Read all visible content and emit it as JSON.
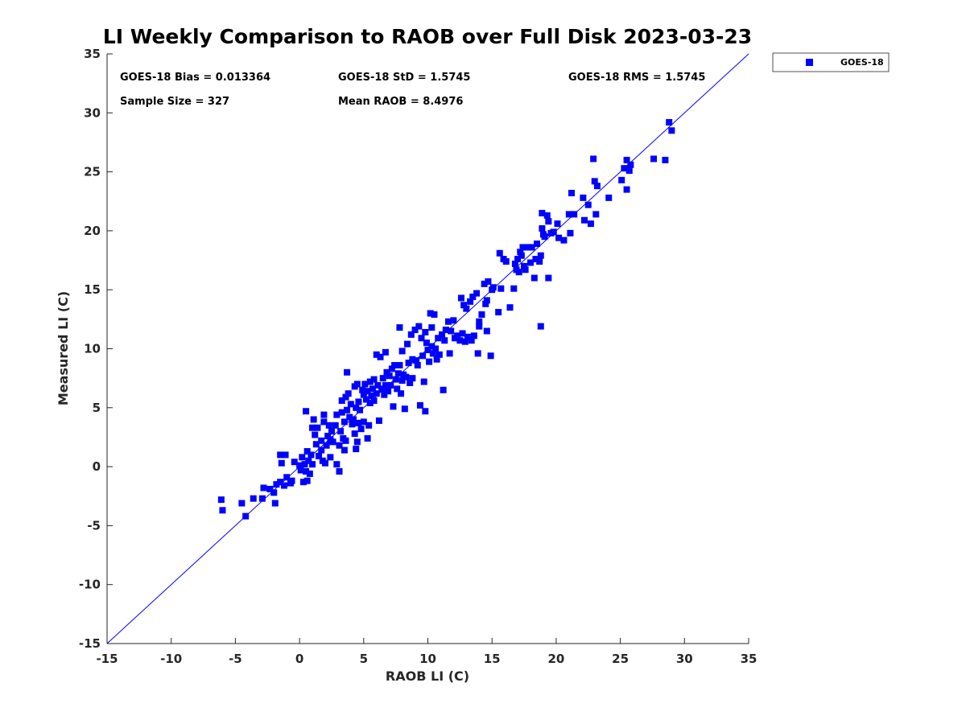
{
  "chart_data": {
    "type": "scatter",
    "title": "LI Weekly Comparison to RAOB over Full Disk 2023-03-23",
    "xlabel": "RAOB LI (C)",
    "ylabel": "Measured LI (C)",
    "xlim": [
      -15,
      35
    ],
    "ylim": [
      -15,
      35
    ],
    "xticks": [
      -15,
      -10,
      -5,
      0,
      5,
      10,
      15,
      20,
      25,
      30,
      35
    ],
    "yticks": [
      -15,
      -10,
      -5,
      0,
      5,
      10,
      15,
      20,
      25,
      30,
      35
    ],
    "grid": false,
    "legend_position": "outside-top-right",
    "reference_line": {
      "type": "identity",
      "color": "#0000ff"
    },
    "stats": {
      "bias": "GOES-18 Bias = 0.013364",
      "std": "GOES-18 StD = 1.5745",
      "rms": "GOES-18 RMS = 1.5745",
      "sample_size": "Sample Size = 327",
      "mean_raob": "Mean RAOB = 8.4976"
    },
    "series": [
      {
        "name": "GOES-18",
        "color": "#0000ff",
        "marker": "square",
        "points": [
          [
            -6.1,
            -2.8
          ],
          [
            -6.0,
            -3.7
          ],
          [
            -4.5,
            -3.1
          ],
          [
            -4.2,
            -4.2
          ],
          [
            -3.6,
            -2.7
          ],
          [
            -2.9,
            -2.7
          ],
          [
            -2.8,
            -1.8
          ],
          [
            -2.3,
            -1.9
          ],
          [
            -2.0,
            -2.2
          ],
          [
            -1.9,
            -3.1
          ],
          [
            -1.8,
            -1.5
          ],
          [
            -1.5,
            -1.3
          ],
          [
            -1.4,
            0.3
          ],
          [
            -1.5,
            1.0
          ],
          [
            -1.2,
            -1.6
          ],
          [
            -1.1,
            1.0
          ],
          [
            -1.0,
            -0.9
          ],
          [
            -0.7,
            -1.4
          ],
          [
            -0.6,
            -1.2
          ],
          [
            -0.4,
            0.4
          ],
          [
            0.0,
            0.1
          ],
          [
            0.1,
            -0.3
          ],
          [
            0.2,
            0.8
          ],
          [
            0.3,
            -1.3
          ],
          [
            0.4,
            0.2
          ],
          [
            0.5,
            -0.4
          ],
          [
            0.5,
            4.7
          ],
          [
            0.6,
            -1.2
          ],
          [
            0.6,
            1.3
          ],
          [
            0.7,
            0.5
          ],
          [
            0.8,
            -0.6
          ],
          [
            0.9,
            1.0
          ],
          [
            1.0,
            3.3
          ],
          [
            1.0,
            0.2
          ],
          [
            1.1,
            4.0
          ],
          [
            1.2,
            2.7
          ],
          [
            1.3,
            1.9
          ],
          [
            1.4,
            3.3
          ],
          [
            1.5,
            0.9
          ],
          [
            1.7,
            1.4
          ],
          [
            1.7,
            2.2
          ],
          [
            1.8,
            0.5
          ],
          [
            1.9,
            3.8
          ],
          [
            1.9,
            4.4
          ],
          [
            2.0,
            0.3
          ],
          [
            2.1,
            1.8
          ],
          [
            2.2,
            2.6
          ],
          [
            2.3,
            3.5
          ],
          [
            2.4,
            0.8
          ],
          [
            2.4,
            2.3
          ],
          [
            2.5,
            3.0
          ],
          [
            2.6,
            2.1
          ],
          [
            2.8,
            3.5
          ],
          [
            2.9,
            4.4
          ],
          [
            2.9,
            0.2
          ],
          [
            3.1,
            1.8
          ],
          [
            3.1,
            -0.4
          ],
          [
            3.2,
            3.0
          ],
          [
            3.3,
            5.6
          ],
          [
            3.3,
            4.6
          ],
          [
            3.4,
            2.4
          ],
          [
            3.5,
            3.8
          ],
          [
            3.5,
            1.4
          ],
          [
            3.6,
            5.9
          ],
          [
            3.6,
            2.2
          ],
          [
            3.7,
            8.0
          ],
          [
            3.7,
            4.8
          ],
          [
            3.8,
            6.2
          ],
          [
            3.9,
            4.2
          ],
          [
            4.0,
            5.3
          ],
          [
            4.1,
            3.6
          ],
          [
            4.2,
            4.0
          ],
          [
            4.3,
            2.8
          ],
          [
            4.3,
            6.8
          ],
          [
            4.4,
            5.0
          ],
          [
            4.4,
            1.5
          ],
          [
            4.5,
            2.1
          ],
          [
            4.5,
            7.0
          ],
          [
            4.6,
            5.5
          ],
          [
            4.6,
            3.7
          ],
          [
            4.7,
            4.8
          ],
          [
            4.8,
            3.2
          ],
          [
            4.9,
            6.5
          ],
          [
            5.0,
            6.1
          ],
          [
            5.0,
            3.8
          ],
          [
            5.1,
            7.0
          ],
          [
            5.2,
            5.7
          ],
          [
            5.3,
            6.4
          ],
          [
            5.3,
            2.4
          ],
          [
            5.4,
            3.5
          ],
          [
            5.5,
            7.2
          ],
          [
            5.5,
            5.4
          ],
          [
            5.6,
            6.0
          ],
          [
            5.7,
            6.6
          ],
          [
            5.8,
            5.6
          ],
          [
            5.8,
            7.4
          ],
          [
            6.0,
            6.2
          ],
          [
            6.0,
            9.5
          ],
          [
            6.1,
            6.9
          ],
          [
            6.2,
            3.9
          ],
          [
            6.3,
            9.3
          ],
          [
            6.4,
            6.6
          ],
          [
            6.5,
            7.5
          ],
          [
            6.6,
            6.1
          ],
          [
            6.7,
            9.7
          ],
          [
            6.7,
            6.9
          ],
          [
            6.8,
            8.0
          ],
          [
            6.9,
            6.4
          ],
          [
            7.0,
            7.7
          ],
          [
            7.1,
            6.9
          ],
          [
            7.2,
            8.3
          ],
          [
            7.3,
            5.1
          ],
          [
            7.4,
            8.6
          ],
          [
            7.5,
            7.4
          ],
          [
            7.6,
            6.6
          ],
          [
            7.7,
            7.9
          ],
          [
            7.8,
            8.6
          ],
          [
            7.8,
            11.8
          ],
          [
            7.9,
            6.2
          ],
          [
            8.0,
            7.3
          ],
          [
            8.0,
            9.8
          ],
          [
            8.1,
            7.8
          ],
          [
            8.2,
            4.9
          ],
          [
            8.3,
            7.6
          ],
          [
            8.4,
            10.4
          ],
          [
            8.5,
            8.8
          ],
          [
            8.6,
            7.1
          ],
          [
            8.7,
            11.2
          ],
          [
            8.8,
            9.1
          ],
          [
            8.8,
            7.5
          ],
          [
            9.0,
            11.6
          ],
          [
            9.1,
            9.0
          ],
          [
            9.2,
            8.6
          ],
          [
            9.3,
            11.9
          ],
          [
            9.4,
            5.2
          ],
          [
            9.5,
            10.9
          ],
          [
            9.6,
            9.4
          ],
          [
            9.7,
            7.2
          ],
          [
            9.8,
            11.4
          ],
          [
            9.8,
            4.7
          ],
          [
            9.9,
            10.5
          ],
          [
            10.0,
            9.9
          ],
          [
            10.1,
            8.9
          ],
          [
            10.2,
            13.0
          ],
          [
            10.3,
            10.2
          ],
          [
            10.3,
            11.8
          ],
          [
            10.4,
            9.6
          ],
          [
            10.5,
            12.9
          ],
          [
            10.6,
            10.0
          ],
          [
            10.7,
            9.1
          ],
          [
            10.8,
            10.9
          ],
          [
            10.9,
            9.5
          ],
          [
            11.1,
            11.2
          ],
          [
            11.2,
            6.5
          ],
          [
            11.3,
            10.7
          ],
          [
            11.4,
            11.6
          ],
          [
            11.6,
            12.3
          ],
          [
            11.7,
            9.6
          ],
          [
            11.8,
            11.5
          ],
          [
            12.0,
            12.4
          ],
          [
            12.1,
            10.9
          ],
          [
            12.3,
            11.1
          ],
          [
            12.5,
            10.7
          ],
          [
            12.6,
            14.3
          ],
          [
            12.7,
            11.3
          ],
          [
            12.8,
            13.7
          ],
          [
            12.9,
            10.6
          ],
          [
            13.0,
            13.4
          ],
          [
            13.1,
            11.0
          ],
          [
            13.3,
            14.0
          ],
          [
            13.4,
            10.7
          ],
          [
            13.5,
            14.4
          ],
          [
            13.6,
            11.1
          ],
          [
            13.8,
            14.7
          ],
          [
            13.9,
            9.6
          ],
          [
            14.0,
            12.3
          ],
          [
            14.0,
            11.9
          ],
          [
            14.2,
            12.9
          ],
          [
            14.4,
            15.5
          ],
          [
            14.5,
            13.8
          ],
          [
            14.6,
            11.5
          ],
          [
            14.6,
            14.1
          ],
          [
            14.7,
            15.7
          ],
          [
            14.9,
            9.4
          ],
          [
            15.0,
            15.0
          ],
          [
            15.1,
            15.2
          ],
          [
            15.5,
            13.1
          ],
          [
            15.6,
            18.1
          ],
          [
            15.7,
            15.1
          ],
          [
            15.9,
            17.6
          ],
          [
            16.1,
            17.4
          ],
          [
            16.4,
            13.5
          ],
          [
            16.7,
            15.1
          ],
          [
            16.8,
            17.2
          ],
          [
            16.9,
            16.7
          ],
          [
            17.0,
            17.6
          ],
          [
            17.1,
            16.5
          ],
          [
            17.2,
            18.2
          ],
          [
            17.3,
            17.9
          ],
          [
            17.4,
            18.6
          ],
          [
            17.5,
            17.0
          ],
          [
            17.6,
            16.7
          ],
          [
            17.8,
            18.6
          ],
          [
            18.0,
            17.3
          ],
          [
            18.1,
            18.6
          ],
          [
            18.3,
            16.0
          ],
          [
            18.4,
            17.6
          ],
          [
            18.5,
            18.9
          ],
          [
            18.7,
            17.4
          ],
          [
            18.8,
            17.9
          ],
          [
            18.8,
            11.9
          ],
          [
            18.9,
            20.2
          ],
          [
            18.9,
            21.5
          ],
          [
            19.0,
            19.7
          ],
          [
            19.1,
            19.5
          ],
          [
            19.3,
            21.3
          ],
          [
            19.4,
            16.0
          ],
          [
            19.4,
            20.8
          ],
          [
            19.6,
            19.8
          ],
          [
            19.8,
            19.9
          ],
          [
            20.1,
            20.6
          ],
          [
            20.2,
            19.4
          ],
          [
            20.6,
            19.2
          ],
          [
            21.0,
            21.4
          ],
          [
            21.1,
            19.8
          ],
          [
            21.2,
            23.2
          ],
          [
            21.4,
            21.4
          ],
          [
            22.1,
            22.8
          ],
          [
            22.2,
            20.9
          ],
          [
            22.5,
            22.2
          ],
          [
            22.7,
            20.6
          ],
          [
            22.9,
            26.1
          ],
          [
            23.0,
            24.2
          ],
          [
            23.1,
            21.4
          ],
          [
            23.2,
            23.8
          ],
          [
            24.1,
            22.8
          ],
          [
            25.1,
            24.3
          ],
          [
            25.3,
            25.3
          ],
          [
            25.5,
            23.5
          ],
          [
            25.5,
            26.0
          ],
          [
            25.7,
            25.1
          ],
          [
            25.8,
            25.6
          ],
          [
            27.6,
            26.1
          ],
          [
            28.5,
            26.0
          ],
          [
            28.8,
            29.2
          ],
          [
            29.0,
            28.5
          ]
        ]
      }
    ]
  }
}
